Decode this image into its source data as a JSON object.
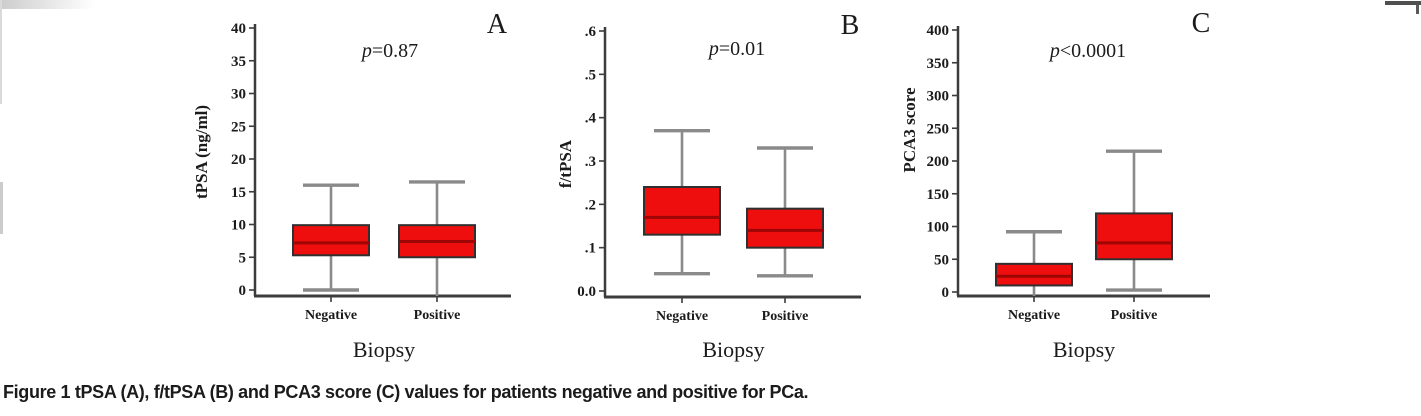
{
  "figure": {
    "caption": "Figure 1 tPSA (A), f/tPSA (B) and PCA3 score (C) values for patients negative and positive for PCa."
  },
  "colors": {
    "box_fill": "#ee0e0e",
    "box_border": "#303030",
    "median_line": "#9e0505",
    "whisker": "#8a8a8a",
    "axis": "#3c3c3c",
    "text": "#1b1b1b"
  },
  "chart_data": [
    {
      "type": "box",
      "panel_letter": "A",
      "p_value": "p=0.87",
      "xlabel": "Biopsy",
      "ylabel": "tPSA (ng/ml)",
      "categories": [
        "Negative",
        "Positive"
      ],
      "ylim": [
        0,
        40
      ],
      "yticks": [
        0,
        5,
        10,
        15,
        20,
        25,
        30,
        35,
        40
      ],
      "ytick_labels": [
        "0",
        "5",
        "10",
        "15",
        "20",
        "25",
        "30",
        "35",
        "40"
      ],
      "grid": false,
      "series": [
        {
          "category": "Negative",
          "whisker_low": 0,
          "q1": 5.3,
          "median": 7.2,
          "q3": 9.9,
          "whisker_high": 16.0,
          "low_cap": true
        },
        {
          "category": "Positive",
          "whisker_low": 0,
          "q1": 5.0,
          "median": 7.4,
          "q3": 9.9,
          "whisker_high": 16.5,
          "low_cap": false
        }
      ]
    },
    {
      "type": "box",
      "panel_letter": "B",
      "p_value": "p=0.01",
      "xlabel": "Biopsy",
      "ylabel": "f/tPSA",
      "categories": [
        "Negative",
        "Positive"
      ],
      "ylim": [
        0,
        0.6
      ],
      "yticks": [
        0,
        0.1,
        0.2,
        0.3,
        0.4,
        0.5,
        0.6
      ],
      "ytick_labels": [
        "0.0",
        ".1",
        ".2",
        ".3",
        ".4",
        ".5",
        ".6"
      ],
      "grid": false,
      "series": [
        {
          "category": "Negative",
          "whisker_low": 0.04,
          "q1": 0.13,
          "median": 0.17,
          "q3": 0.24,
          "whisker_high": 0.37,
          "low_cap": true
        },
        {
          "category": "Positive",
          "whisker_low": 0.035,
          "q1": 0.1,
          "median": 0.14,
          "q3": 0.19,
          "whisker_high": 0.33,
          "low_cap": true
        }
      ]
    },
    {
      "type": "box",
      "panel_letter": "C",
      "p_value": "p<0.0001",
      "xlabel": "Biopsy",
      "ylabel": "PCA3 score",
      "categories": [
        "Negative",
        "Positive"
      ],
      "ylim": [
        0,
        400
      ],
      "yticks": [
        0,
        50,
        100,
        150,
        200,
        250,
        300,
        350,
        400
      ],
      "ytick_labels": [
        "0",
        "50",
        "100",
        "150",
        "200",
        "250",
        "300",
        "350",
        "400"
      ],
      "grid": false,
      "series": [
        {
          "category": "Negative",
          "whisker_low": 0,
          "q1": 10,
          "median": 24,
          "q3": 43,
          "whisker_high": 92,
          "low_cap": false
        },
        {
          "category": "Positive",
          "whisker_low": 3,
          "q1": 50,
          "median": 75,
          "q3": 120,
          "whisker_high": 215,
          "low_cap": true
        }
      ]
    }
  ]
}
